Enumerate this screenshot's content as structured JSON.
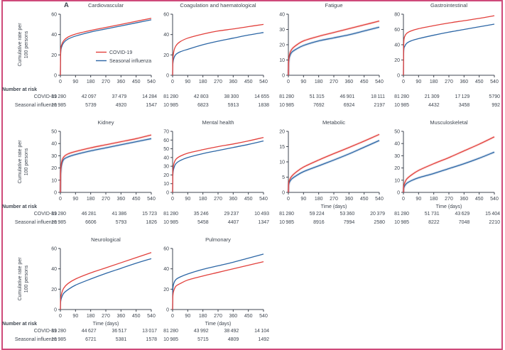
{
  "figure_label": "A",
  "frame_border_color": "#cf4a7a",
  "text_color": "#3f4650",
  "legend": {
    "items": [
      {
        "key": "covid",
        "label": "COVID-19",
        "color": "#e2403c"
      },
      {
        "key": "influenza",
        "label": "Seasonal influenza",
        "color": "#2c66a5"
      }
    ]
  },
  "number_at_risk_label": "Number at risk",
  "risk_row_labels": [
    "COVID-19",
    "Seasonal influenza"
  ],
  "chart_data": {
    "type": "line",
    "xlabel": "Time (days)",
    "ylabel_lines": [
      "Cumulative rate per",
      "100 persons"
    ],
    "x_ticks": [
      0,
      90,
      180,
      270,
      360,
      450,
      540
    ],
    "x_range": [
      0,
      540
    ],
    "risk_ticks": [
      0,
      180,
      360,
      540
    ],
    "sample_days": [
      0,
      2,
      8,
      20,
      45,
      90,
      180,
      270,
      360,
      450,
      540
    ],
    "series_names": [
      "COVID-19",
      "Seasonal influenza"
    ],
    "panels": [
      {
        "title": "Cardiovascular",
        "slug": "cardiovascular",
        "ylim": [
          0,
          60
        ],
        "yticks": [
          0,
          20,
          40,
          60
        ],
        "covid": [
          0,
          24,
          30,
          34,
          37.5,
          40.5,
          44,
          47,
          50,
          53,
          56
        ],
        "influenza": [
          0,
          22,
          28,
          32,
          35.5,
          38.5,
          42.5,
          45.5,
          48.5,
          51.5,
          54.5
        ],
        "risk_covid": [
          "81 280",
          "42 097",
          "37 479",
          "14 284"
        ],
        "risk_influenza": [
          "10 985",
          "5739",
          "4920",
          "1547"
        ],
        "show_legend": true,
        "show_xlabel": false,
        "band": false
      },
      {
        "title": "Coagulation and haematological",
        "slug": "coagulation-and-haematological",
        "ylim": [
          0,
          60
        ],
        "yticks": [
          0,
          20,
          40,
          60
        ],
        "covid": [
          0,
          16,
          24,
          29,
          33,
          36.5,
          40.5,
          43.5,
          45.5,
          47.8,
          50
        ],
        "influenza": [
          0,
          12,
          17,
          20.5,
          23,
          25.5,
          30,
          33.5,
          36.5,
          39.5,
          42
        ],
        "risk_covid": [
          "81 280",
          "42 803",
          "38 300",
          "14 655"
        ],
        "risk_influenza": [
          "10 985",
          "6823",
          "5913",
          "1838"
        ],
        "show_legend": false,
        "show_xlabel": false,
        "band": false
      },
      {
        "title": "Fatigue",
        "slug": "fatigue",
        "ylim": [
          0,
          40
        ],
        "yticks": [
          0,
          10,
          20,
          30,
          40
        ],
        "covid": [
          0,
          10,
          14,
          17,
          19.5,
          22.5,
          25.5,
          28,
          30.5,
          33,
          35.5
        ],
        "influenza": [
          0,
          9,
          12.5,
          15,
          17,
          19.5,
          22.5,
          24.5,
          26.5,
          29,
          31.5
        ],
        "risk_covid": [
          "81 280",
          "51 315",
          "46 901",
          "18 111"
        ],
        "risk_influenza": [
          "10 985",
          "7692",
          "6924",
          "2197"
        ],
        "show_legend": false,
        "show_xlabel": false,
        "band": true
      },
      {
        "title": "Gastrointestinal",
        "slug": "gastrointestinal",
        "ylim": [
          0,
          80
        ],
        "yticks": [
          0,
          20,
          40,
          60,
          80
        ],
        "covid": [
          0,
          42,
          51,
          55,
          58,
          61,
          65,
          68.5,
          71.5,
          74.5,
          78
        ],
        "influenza": [
          0,
          32,
          38,
          42,
          45,
          48,
          52.5,
          56.5,
          60,
          63.5,
          67
        ],
        "risk_covid": [
          "81 280",
          "21 309",
          "17 129",
          "5790"
        ],
        "risk_influenza": [
          "10 985",
          "4432",
          "3458",
          "992"
        ],
        "show_legend": false,
        "show_xlabel": false,
        "band": false
      },
      {
        "title": "Kidney",
        "slug": "kidney",
        "ylim": [
          0,
          50
        ],
        "yticks": [
          0,
          10,
          20,
          30,
          40,
          50
        ],
        "covid": [
          0,
          18,
          25,
          29,
          31.5,
          33.5,
          36.5,
          39,
          41.5,
          44,
          47
        ],
        "influenza": [
          0,
          16,
          23,
          27,
          29,
          31,
          34,
          36.5,
          39,
          41.5,
          44
        ],
        "risk_covid": [
          "81 280",
          "46 281",
          "41 386",
          "15 723"
        ],
        "risk_influenza": [
          "10 985",
          "6606",
          "5793",
          "1826"
        ],
        "show_legend": false,
        "show_xlabel": false,
        "band": true
      },
      {
        "title": "Mental health",
        "slug": "mental-health",
        "ylim": [
          0,
          70
        ],
        "yticks": [
          0,
          10,
          20,
          30,
          40,
          50,
          60,
          70
        ],
        "covid": [
          0,
          25,
          33,
          38,
          41.5,
          45,
          49,
          52.5,
          55.5,
          59,
          63
        ],
        "influenza": [
          0,
          21,
          28,
          33,
          36.5,
          40,
          44.5,
          48,
          51.5,
          55,
          59
        ],
        "risk_covid": [
          "81 280",
          "35 246",
          "29 237",
          "10 493"
        ],
        "risk_influenza": [
          "10 985",
          "5458",
          "4407",
          "1347"
        ],
        "show_legend": false,
        "show_xlabel": false,
        "band": false
      },
      {
        "title": "Metabolic",
        "slug": "metabolic",
        "ylim": [
          0,
          20
        ],
        "yticks": [
          0,
          5,
          10,
          15,
          20
        ],
        "covid": [
          0,
          3,
          4.2,
          5.3,
          6.6,
          8.3,
          10.6,
          12.7,
          14.7,
          16.8,
          19
        ],
        "influenza": [
          0,
          2.5,
          3.5,
          4.4,
          5.4,
          6.8,
          8.7,
          10.6,
          12.6,
          14.8,
          17
        ],
        "risk_covid": [
          "81 280",
          "59 224",
          "53 360",
          "20 379"
        ],
        "risk_influenza": [
          "10 985",
          "8916",
          "7994",
          "2580"
        ],
        "show_legend": false,
        "show_xlabel": true,
        "band": true
      },
      {
        "title": "Musculoskeletal",
        "slug": "musculoskeletal",
        "ylim": [
          0,
          50
        ],
        "yticks": [
          0,
          10,
          20,
          30,
          40,
          50
        ],
        "covid": [
          0,
          5,
          8,
          11,
          14,
          18,
          23.5,
          28.5,
          34,
          39.5,
          45.5
        ],
        "influenza": [
          0,
          3.5,
          5.5,
          7.5,
          9.5,
          12,
          15.5,
          19.5,
          23.5,
          28,
          33
        ],
        "risk_covid": [
          "81 280",
          "51 731",
          "43 629",
          "15 404"
        ],
        "risk_influenza": [
          "10 985",
          "8222",
          "7048",
          "2210"
        ],
        "show_legend": false,
        "show_xlabel": true,
        "band": true
      },
      {
        "title": "Neurological",
        "slug": "neurological",
        "ylim": [
          0,
          60
        ],
        "yticks": [
          0,
          20,
          40,
          60
        ],
        "covid": [
          0,
          11,
          16,
          21,
          25.5,
          30,
          36,
          41,
          46,
          51,
          56
        ],
        "influenza": [
          0,
          8,
          12,
          16,
          19.5,
          24,
          30,
          35.5,
          40.5,
          45.5,
          50
        ],
        "risk_covid": [
          "81 280",
          "44 627",
          "36 517",
          "13 017"
        ],
        "risk_influenza": [
          "10 985",
          "6721",
          "5381",
          "1578"
        ],
        "show_legend": false,
        "show_xlabel": true,
        "band": false
      },
      {
        "title": "Pulmonary",
        "slug": "pulmonary",
        "ylim": [
          0,
          60
        ],
        "yticks": [
          0,
          20,
          40,
          60
        ],
        "covid": [
          0,
          14,
          19,
          23,
          25.5,
          29,
          33,
          36.5,
          40,
          43.5,
          47
        ],
        "influenza": [
          0,
          20,
          26,
          29.5,
          32,
          35,
          39.5,
          43,
          46.5,
          50.5,
          54.5
        ],
        "risk_covid": [
          "81 280",
          "43 992",
          "38 492",
          "14 104"
        ],
        "risk_influenza": [
          "10 985",
          "5715",
          "4809",
          "1492"
        ],
        "show_legend": false,
        "show_xlabel": true,
        "band": false
      }
    ]
  }
}
